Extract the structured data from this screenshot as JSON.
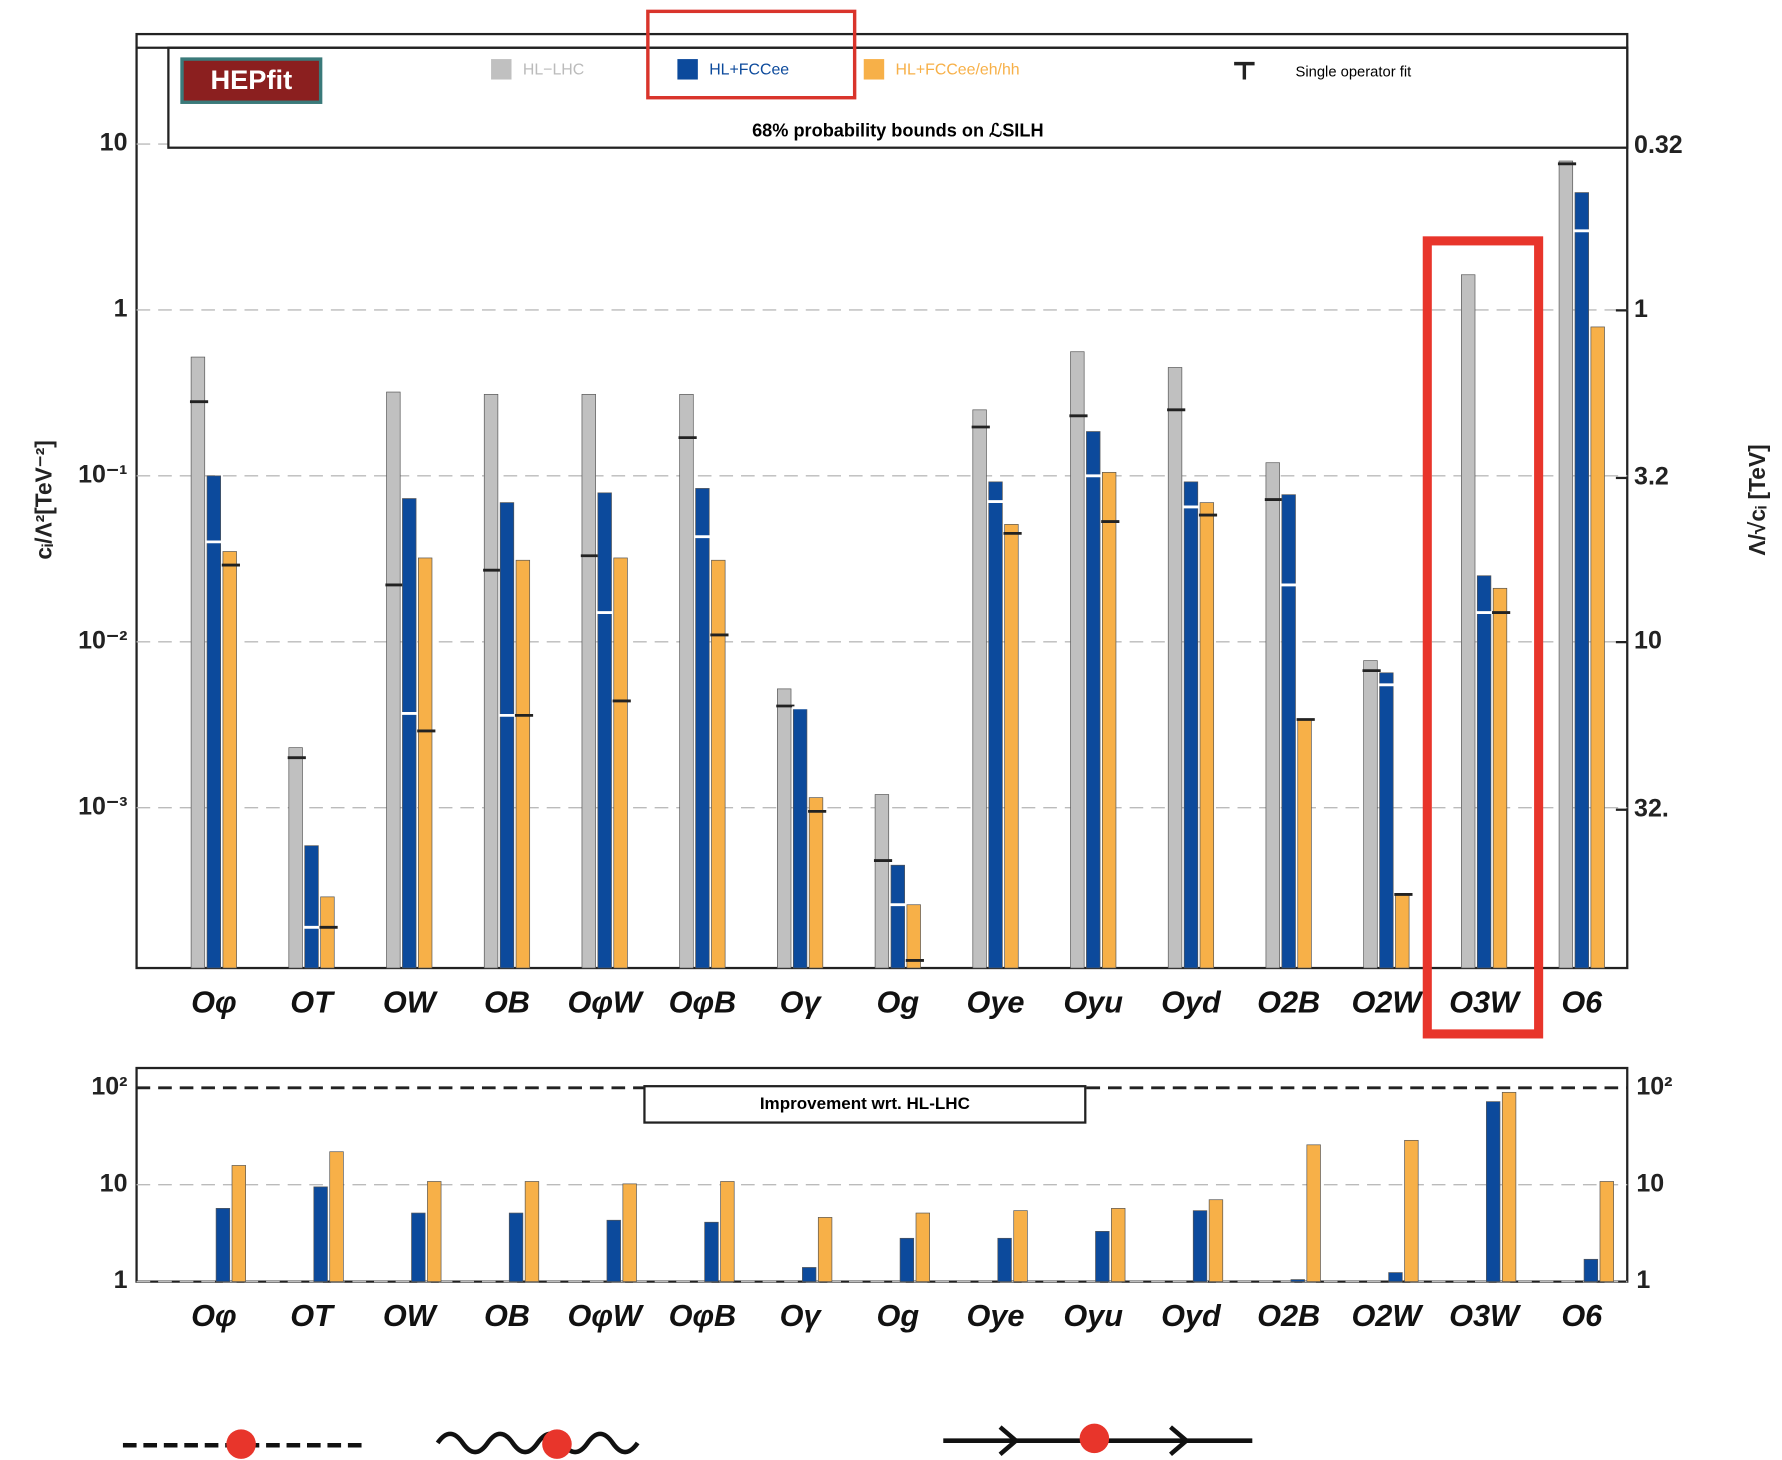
{
  "chart_data": [
    {
      "type": "bar",
      "title": "68% probability bounds on ℒSILH",
      "logo": "HEPfit",
      "y_label": "cᵢ/Λ²[TeV⁻²]",
      "y2_label": "Λ/√cᵢ [TeV]",
      "single_fit_label": "Single operator fit",
      "categories": [
        "Oφ",
        "OT",
        "OW",
        "OB",
        "OφW",
        "OφB",
        "Oγ",
        "Og",
        "Oye",
        "Oyu",
        "Oyd",
        "O2B",
        "O2W",
        "O3W",
        "O6"
      ],
      "log_y": true,
      "grid": true,
      "legend": "top",
      "ylim": [
        0.000108,
        46
      ],
      "yticks": [
        {
          "value": 10,
          "label": "10"
        },
        {
          "value": 1,
          "label": "1"
        },
        {
          "value": 0.1,
          "label": "10⁻¹"
        },
        {
          "value": 0.01,
          "label": "10⁻²"
        },
        {
          "value": 0.001,
          "label": "10⁻³"
        }
      ],
      "y2lim": [
        96,
        0.147
      ],
      "y2ticks": [
        0.32,
        1,
        3.2,
        10,
        {
          "value": 32,
          "label": "32."
        }
      ],
      "series": [
        {
          "name": "HL−LHC",
          "color": "#c0c0c0",
          "fit_color": "#222222",
          "values": [
            0.52,
            0.0023,
            0.32,
            0.31,
            0.31,
            0.31,
            0.0052,
            0.0012,
            0.25,
            0.56,
            0.45,
            0.12,
            0.0077,
            1.63,
            7.9
          ],
          "single_fit": [
            0.28,
            0.002,
            0.022,
            0.027,
            0.033,
            0.17,
            0.0041,
            0.00048,
            0.197,
            0.23,
            0.25,
            0.072,
            0.0067,
            null,
            7.6
          ]
        },
        {
          "name": "HL+FCCee",
          "color": "#0c4a9c",
          "fit_color": "#ffffff",
          "values": [
            0.1,
            0.00059,
            0.073,
            0.069,
            0.079,
            0.084,
            0.004,
            0.00045,
            0.092,
            0.185,
            0.092,
            0.077,
            0.0065,
            0.025,
            5.1
          ],
          "single_fit": [
            0.04,
            0.00019,
            0.0037,
            0.0036,
            0.015,
            0.043,
            0.004,
            0.00026,
            0.07,
            0.1,
            0.065,
            0.022,
            0.0055,
            0.015,
            3.0
          ]
        },
        {
          "name": "HL+FCCee/eh/hh",
          "color": "#f7b048",
          "fit_color": "#222222",
          "values": [
            0.035,
            0.00029,
            0.032,
            0.031,
            0.032,
            0.031,
            0.00115,
            0.00026,
            0.051,
            0.105,
            0.069,
            0.0034,
            0.0003,
            0.021,
            0.79
          ],
          "single_fit": [
            0.029,
            0.00019,
            0.0029,
            0.0036,
            0.0044,
            0.011,
            0.00095,
            0.00012,
            0.045,
            0.053,
            0.058,
            0.0034,
            0.0003,
            0.015,
            null
          ]
        }
      ]
    },
    {
      "type": "bar",
      "annotation": "Improvement wrt. HL-LHC",
      "categories": [
        "Oφ",
        "OT",
        "OW",
        "OB",
        "OφW",
        "OφB",
        "Oγ",
        "Og",
        "Oye",
        "Oyu",
        "Oyd",
        "O2B",
        "O2W",
        "O3W",
        "O6"
      ],
      "log_y": true,
      "grid": true,
      "mirror_y_labels": true,
      "ylim": [
        1,
        160
      ],
      "yticks": [
        1,
        10,
        {
          "value": 100,
          "label": "10²"
        }
      ],
      "series": [
        {
          "color": "#0c4a9c",
          "values": [
            5.7,
            9.5,
            5.1,
            5.1,
            4.3,
            4.1,
            1.4,
            2.8,
            2.8,
            3.3,
            5.4,
            1.05,
            1.24,
            72,
            1.7
          ]
        },
        {
          "color": "#f7b048",
          "values": [
            15.8,
            21.9,
            10.8,
            10.8,
            10.2,
            10.8,
            4.6,
            5.1,
            5.4,
            5.7,
            7.0,
            25.8,
            28.7,
            89.8,
            10.8
          ]
        }
      ]
    }
  ]
}
